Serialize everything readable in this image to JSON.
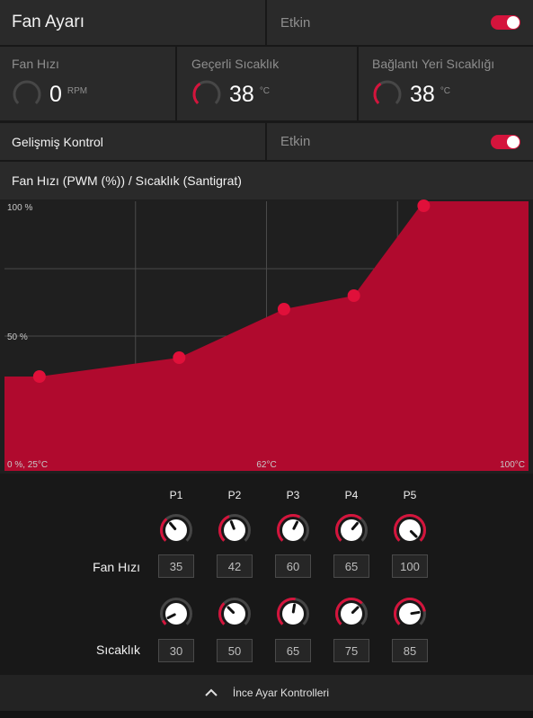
{
  "header": {
    "title": "Fan Ayarı",
    "state_label": "Etkin",
    "enabled": true
  },
  "stats": [
    {
      "label": "Fan Hızı",
      "value": "0",
      "unit": "RPM",
      "gauge_fraction": 0.0
    },
    {
      "label": "Geçerli Sıcaklık",
      "value": "38",
      "unit": "°C",
      "gauge_fraction": 0.38
    },
    {
      "label": "Bağlantı Yeri Sıcaklığı",
      "value": "38",
      "unit": "°C",
      "gauge_fraction": 0.38
    }
  ],
  "advanced": {
    "title": "Gelişmiş Kontrol",
    "state_label": "Etkin",
    "enabled": true
  },
  "chart_title": "Fan Hızı (PWM (%)) / Sıcaklık (Santigrat)",
  "chart_data": {
    "type": "area",
    "x": [
      30,
      50,
      65,
      75,
      85
    ],
    "y": [
      35,
      42,
      60,
      65,
      100
    ],
    "xlim": [
      25,
      100
    ],
    "ylim": [
      0,
      100
    ],
    "grid": true,
    "y_tick_labels": [
      "100 %",
      "50 %"
    ],
    "x_tick_labels": [
      "0 %, 25°C",
      "62°C",
      "100°C"
    ],
    "fill_color": "#b00a2e",
    "point_color": "#e0103a"
  },
  "points_header": [
    "P1",
    "P2",
    "P3",
    "P4",
    "P5"
  ],
  "fan_speed": {
    "label": "Fan Hızı",
    "values": [
      "35",
      "42",
      "60",
      "65",
      "100"
    ]
  },
  "temperature": {
    "label": "Sıcaklık",
    "values": [
      "30",
      "50",
      "65",
      "75",
      "85"
    ]
  },
  "footer": {
    "label": "İnce Ayar Kontrolleri"
  },
  "colors": {
    "accent": "#d4143c",
    "panel": "#2a2a2a",
    "background": "#181818"
  }
}
